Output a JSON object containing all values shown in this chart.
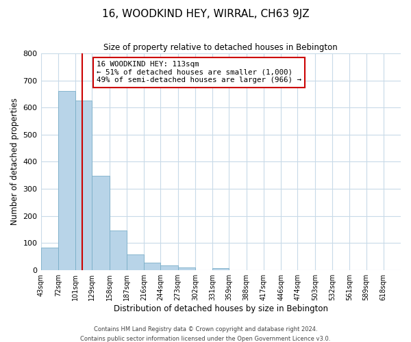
{
  "title": "16, WOODKIND HEY, WIRRAL, CH63 9JZ",
  "subtitle": "Size of property relative to detached houses in Bebington",
  "xlabel": "Distribution of detached houses by size in Bebington",
  "ylabel": "Number of detached properties",
  "bin_labels": [
    "43sqm",
    "72sqm",
    "101sqm",
    "129sqm",
    "158sqm",
    "187sqm",
    "216sqm",
    "244sqm",
    "273sqm",
    "302sqm",
    "331sqm",
    "359sqm",
    "388sqm",
    "417sqm",
    "446sqm",
    "474sqm",
    "503sqm",
    "532sqm",
    "561sqm",
    "589sqm",
    "618sqm"
  ],
  "bar_values": [
    83,
    660,
    625,
    348,
    145,
    57,
    27,
    18,
    10,
    0,
    8,
    0,
    0,
    0,
    0,
    0,
    0,
    0,
    0,
    0,
    0
  ],
  "bar_color": "#b8d4e8",
  "bar_edgecolor": "#7aaec8",
  "vline_x": 113,
  "vline_color": "#cc0000",
  "annotation_title": "16 WOODKIND HEY: 113sqm",
  "annotation_line1": "← 51% of detached houses are smaller (1,000)",
  "annotation_line2": "49% of semi-detached houses are larger (966) →",
  "annotation_box_edgecolor": "#cc0000",
  "ylim": [
    0,
    800
  ],
  "yticks": [
    0,
    100,
    200,
    300,
    400,
    500,
    600,
    700,
    800
  ],
  "bin_edges": [
    43,
    72,
    101,
    129,
    158,
    187,
    216,
    244,
    273,
    302,
    331,
    359,
    388,
    417,
    446,
    474,
    503,
    532,
    561,
    589,
    618,
    647
  ],
  "footer_line1": "Contains HM Land Registry data © Crown copyright and database right 2024.",
  "footer_line2": "Contains public sector information licensed under the Open Government Licence v3.0.",
  "bg_color": "#ffffff",
  "grid_color": "#c8dae8"
}
